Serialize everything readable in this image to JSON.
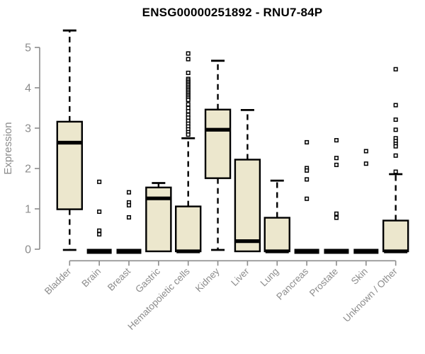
{
  "title": "ENSG00000251892 - RNU7-84P",
  "chart_data": {
    "type": "boxplot",
    "title": "ENSG00000251892 - RNU7-84P",
    "xlabel": "",
    "ylabel": "Expression",
    "ylim": [
      0,
      5.5
    ],
    "yticks": [
      0,
      1,
      2,
      3,
      4,
      5
    ],
    "grid": "off",
    "colors": {
      "box_fill": "#ece7cd",
      "box_stroke": "#000000",
      "axis": "#8c8c8c",
      "title_text": "#000000"
    },
    "categories": [
      "Bladder",
      "Brain",
      "Breast",
      "Gastric",
      "Hematopoietic cells",
      "Kidney",
      "Liver",
      "Lung",
      "Pancreas",
      "Prostate",
      "Skin",
      "Unknown / Other"
    ],
    "boxes": [
      {
        "name": "Bladder",
        "low": 0,
        "q1": 0.99,
        "median": 2.64,
        "q3": 3.16,
        "high": 5.42,
        "outliers": []
      },
      {
        "name": "Brain",
        "low": 0,
        "q1": 0,
        "median": 0,
        "q3": 0,
        "high": 0,
        "outliers": [
          1.67,
          0.93,
          0.46,
          0.37
        ]
      },
      {
        "name": "Breast",
        "low": 0,
        "q1": 0,
        "median": 0,
        "q3": 0,
        "high": 0,
        "outliers": [
          1.41,
          1.16,
          1.09,
          0.79
        ]
      },
      {
        "name": "Gastric",
        "low": 0,
        "q1": 0,
        "median": 1.26,
        "q3": 1.53,
        "high": 1.64,
        "outliers": []
      },
      {
        "name": "Hematopoietic cells",
        "low": 0,
        "q1": 0,
        "median": 0,
        "q3": 1.06,
        "high": 2.75,
        "outliers": [
          4.85,
          4.71,
          4.37,
          4.22,
          4.18,
          4.14,
          4.1,
          4.06,
          4.02,
          3.98,
          3.94,
          3.9,
          3.86,
          3.82,
          3.78,
          3.74,
          3.7,
          3.59,
          3.5,
          3.42,
          3.33,
          3.26,
          3.18,
          3.11,
          3.04,
          2.97,
          2.9,
          2.84
        ]
      },
      {
        "name": "Kidney",
        "low": 0,
        "q1": 1.76,
        "median": 2.96,
        "q3": 3.46,
        "high": 4.67,
        "outliers": []
      },
      {
        "name": "Liver",
        "low": 0,
        "q1": 0,
        "median": 0.2,
        "q3": 2.22,
        "high": 3.45,
        "outliers": []
      },
      {
        "name": "Lung",
        "low": 0,
        "q1": 0,
        "median": 0,
        "q3": 0.78,
        "high": 1.7,
        "outliers": []
      },
      {
        "name": "Pancreas",
        "low": 0,
        "q1": 0,
        "median": 0,
        "q3": 0,
        "high": 0,
        "outliers": [
          2.65,
          2.01,
          1.95,
          1.73,
          1.25
        ]
      },
      {
        "name": "Prostate",
        "low": 0,
        "q1": 0,
        "median": 0,
        "q3": 0,
        "high": 0,
        "outliers": [
          2.7,
          2.26,
          2.09,
          0.88,
          0.78
        ]
      },
      {
        "name": "Skin",
        "low": 0,
        "q1": 0,
        "median": 0,
        "q3": 0,
        "high": 0,
        "outliers": [
          2.43,
          2.12
        ]
      },
      {
        "name": "Unknown / Other",
        "low": 0,
        "q1": 0,
        "median": 0,
        "q3": 0.71,
        "high": 1.86,
        "outliers": [
          4.46,
          3.57,
          3.21,
          2.96,
          2.75,
          2.68,
          2.61,
          2.55,
          2.32,
          1.92
        ]
      }
    ]
  }
}
